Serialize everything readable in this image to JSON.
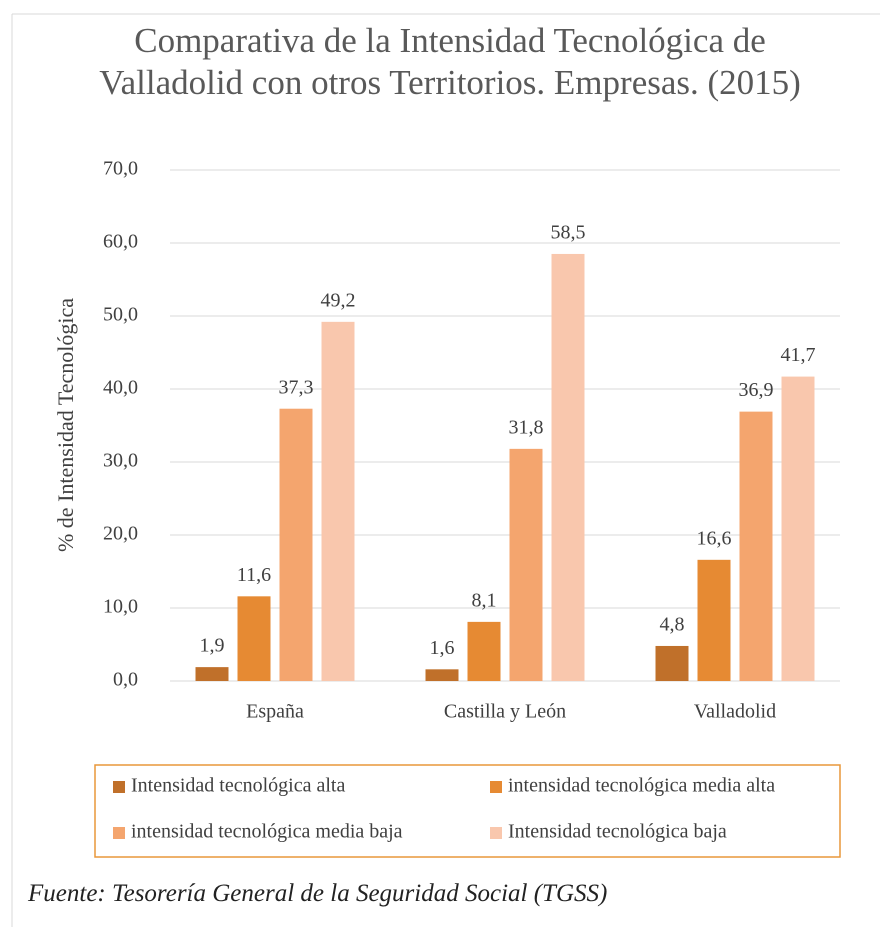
{
  "chart_data": {
    "type": "bar",
    "title": "Comparativa de la Intensidad Tecnológica de Valladolid con otros Territorios. Empresas. (2015)",
    "y_label": "% de Intensidad Tecnológica",
    "categories": [
      "España",
      "Castilla y León",
      "Valladolid"
    ],
    "series": [
      {
        "name": "Intensidad tecnológica alta",
        "color": "#c0702a",
        "values": [
          1.9,
          1.6,
          4.8
        ],
        "value_labels": [
          "1,9",
          "1,6",
          "4,8"
        ]
      },
      {
        "name": "intensidad tecnológica media alta",
        "color": "#e68a33",
        "values": [
          11.6,
          8.1,
          16.6
        ],
        "value_labels": [
          "11,6",
          "8,1",
          "16,6"
        ]
      },
      {
        "name": "intensidad tecnológica media baja",
        "color": "#f4a56e",
        "values": [
          37.3,
          31.8,
          36.9
        ],
        "value_labels": [
          "37,3",
          "31,8",
          "36,9"
        ]
      },
      {
        "name": "Intensidad tecnológica baja",
        "color": "#f9c7ad",
        "values": [
          49.2,
          58.5,
          41.7
        ],
        "value_labels": [
          "49,2",
          "58,5",
          "41,7"
        ]
      }
    ],
    "ylim": [
      0,
      70
    ],
    "yticks": [
      {
        "value": 0,
        "label": "0,0"
      },
      {
        "value": 10,
        "label": "10,0"
      },
      {
        "value": 20,
        "label": "20,0"
      },
      {
        "value": 30,
        "label": "30,0"
      },
      {
        "value": 40,
        "label": "40,0"
      },
      {
        "value": 50,
        "label": "50,0"
      },
      {
        "value": 60,
        "label": "60,0"
      },
      {
        "value": 70,
        "label": "70,0"
      }
    ],
    "grid": true,
    "legend": "bottom",
    "source": "Fuente: Tesorería General de la Seguridad Social (TGSS)"
  }
}
